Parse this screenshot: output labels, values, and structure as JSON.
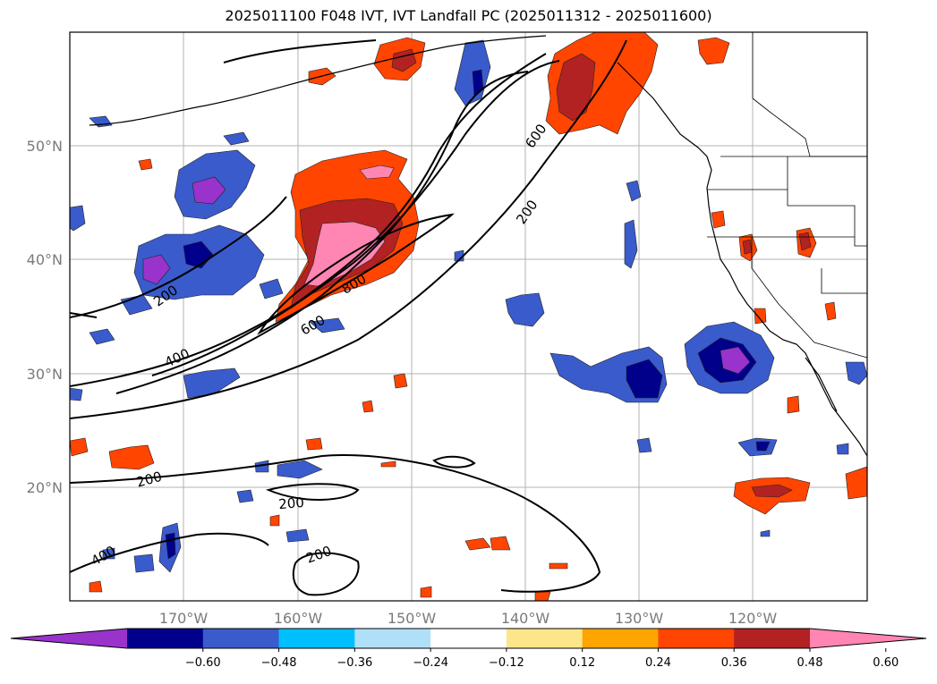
{
  "title": "2025011100 F048 IVT, IVT Landfall PC (2025011312 - 2025011600)",
  "lat_labels": [
    "50°N",
    "40°N",
    "30°N",
    "20°N"
  ],
  "lon_labels": [
    "170°W",
    "160°W",
    "150°W",
    "140°W",
    "130°W",
    "120°W"
  ],
  "contour_labels": [
    {
      "text": "600"
    },
    {
      "text": "200"
    },
    {
      "text": "200"
    },
    {
      "text": "800"
    },
    {
      "text": "600"
    },
    {
      "text": "400"
    },
    {
      "text": "200"
    },
    {
      "text": "200"
    },
    {
      "text": "400"
    },
    {
      "text": "200"
    }
  ],
  "colorbar": {
    "colors": [
      "#9933cc",
      "#00008b",
      "#3a5bcc",
      "#00bfff",
      "#b0e0f8",
      "#ffffff",
      "#fde68a",
      "#ffa500",
      "#ff4500",
      "#b22222",
      "#ff85b3"
    ],
    "ticks": [
      "−0.60",
      "−0.48",
      "−0.36",
      "−0.24",
      "−0.12",
      "0.12",
      "0.24",
      "0.36",
      "0.48",
      "0.60"
    ]
  }
}
